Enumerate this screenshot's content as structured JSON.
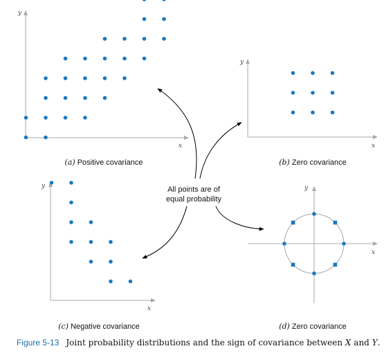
{
  "colors": {
    "dot": "#1c78bd",
    "axis": "#a8a8a8",
    "figure_number": "#1c6ea8"
  },
  "center_note": [
    "All points are of",
    "equal probability"
  ],
  "figure": {
    "number": "Figure 5-13",
    "caption_parts": [
      "Joint probability distributions and the sign of covariance between ",
      "X",
      " and ",
      "Y",
      "."
    ]
  },
  "panels": [
    {
      "id": "a",
      "letter": "(a)",
      "label": "Positive covariance",
      "x_label": "x",
      "y_label": "y",
      "marker": "circle",
      "points": [
        [
          1,
          1
        ],
        [
          2,
          1
        ],
        [
          1,
          2
        ],
        [
          2,
          2
        ],
        [
          3,
          2
        ],
        [
          4,
          2
        ],
        [
          2,
          3
        ],
        [
          3,
          3
        ],
        [
          4,
          3
        ],
        [
          5,
          3
        ],
        [
          2,
          4
        ],
        [
          3,
          4
        ],
        [
          4,
          4
        ],
        [
          5,
          4
        ],
        [
          6,
          4
        ],
        [
          3,
          5
        ],
        [
          4,
          5
        ],
        [
          5,
          5
        ],
        [
          6,
          5
        ],
        [
          7,
          5
        ],
        [
          5,
          6
        ],
        [
          6,
          6
        ],
        [
          7,
          6
        ],
        [
          8,
          6
        ],
        [
          7,
          7
        ],
        [
          8,
          7
        ],
        [
          7,
          8
        ],
        [
          8,
          8
        ]
      ]
    },
    {
      "id": "b",
      "letter": "(b)",
      "label": "Zero covariance",
      "x_label": "x",
      "y_label": "y",
      "marker": "circle",
      "points": [
        [
          1,
          1
        ],
        [
          2,
          1
        ],
        [
          3,
          1
        ],
        [
          1,
          2
        ],
        [
          2,
          2
        ],
        [
          3,
          2
        ],
        [
          1,
          3
        ],
        [
          2,
          3
        ],
        [
          3,
          3
        ]
      ]
    },
    {
      "id": "c",
      "letter": "(c)",
      "label": "Negative covariance",
      "x_label": "x",
      "y_label": "y",
      "marker": "circle",
      "points": [
        [
          1,
          6
        ],
        [
          2,
          6
        ],
        [
          2,
          5
        ],
        [
          2,
          4
        ],
        [
          3,
          4
        ],
        [
          2,
          3
        ],
        [
          3,
          3
        ],
        [
          4,
          3
        ],
        [
          3,
          2
        ],
        [
          4,
          2
        ],
        [
          4,
          1
        ],
        [
          5,
          1
        ]
      ]
    },
    {
      "id": "d",
      "letter": "(d)",
      "label": "Zero covariance",
      "x_label": "x",
      "y_label": "y",
      "marker": "circle-and-square",
      "points": [
        [
          1,
          0
        ],
        [
          0.7071,
          0.7071
        ],
        [
          0,
          1
        ],
        [
          -0.7071,
          0.7071
        ],
        [
          -1,
          0
        ],
        [
          -0.7071,
          -0.7071
        ],
        [
          0,
          -1
        ],
        [
          0.7071,
          -0.7071
        ]
      ]
    }
  ]
}
